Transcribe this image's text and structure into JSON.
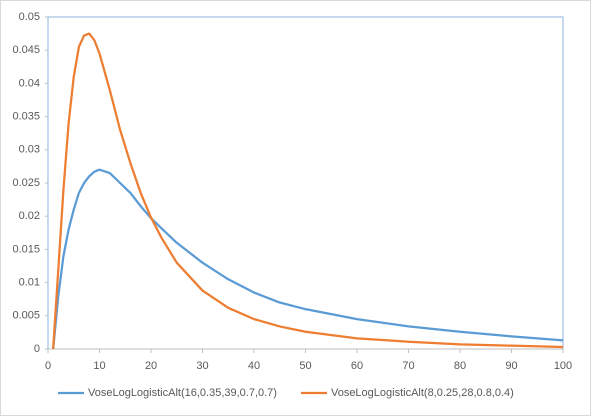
{
  "chart_data": {
    "type": "line",
    "x": [
      1,
      2,
      3,
      4,
      5,
      6,
      7,
      8,
      9,
      10,
      12,
      14,
      16,
      18,
      20,
      22,
      25,
      30,
      35,
      40,
      45,
      50,
      60,
      70,
      80,
      90,
      100
    ],
    "series": [
      {
        "name": "VoseLogLogisticAlt(16,0.35,39,0.7,0.7)",
        "color": "#5b9bd5",
        "values": [
          0,
          0.008,
          0.014,
          0.018,
          0.021,
          0.0235,
          0.025,
          0.026,
          0.0267,
          0.027,
          0.0265,
          0.025,
          0.0235,
          0.0215,
          0.0197,
          0.0182,
          0.016,
          0.013,
          0.0105,
          0.0085,
          0.007,
          0.006,
          0.0045,
          0.0034,
          0.0026,
          0.0019,
          0.0013
        ]
      },
      {
        "name": "VoseLogLogisticAlt(8,0.25,28,0.8,0.4)",
        "color": "#ed7d31",
        "values": [
          0,
          0.012,
          0.024,
          0.034,
          0.041,
          0.0455,
          0.0472,
          0.0475,
          0.0465,
          0.0445,
          0.039,
          0.033,
          0.028,
          0.0235,
          0.0198,
          0.0168,
          0.013,
          0.0088,
          0.0062,
          0.0045,
          0.0034,
          0.0026,
          0.0016,
          0.0011,
          0.0007,
          0.0005,
          0.0003
        ]
      }
    ],
    "xlim": [
      0,
      100
    ],
    "xticks": [
      0,
      10,
      20,
      30,
      40,
      50,
      60,
      70,
      80,
      90,
      100
    ],
    "ylim": [
      0,
      0.05
    ],
    "yticks": [
      0,
      0.005,
      0.01,
      0.015,
      0.02,
      0.025,
      0.03,
      0.035,
      0.04,
      0.045,
      0.05
    ],
    "legend": "bottom"
  }
}
